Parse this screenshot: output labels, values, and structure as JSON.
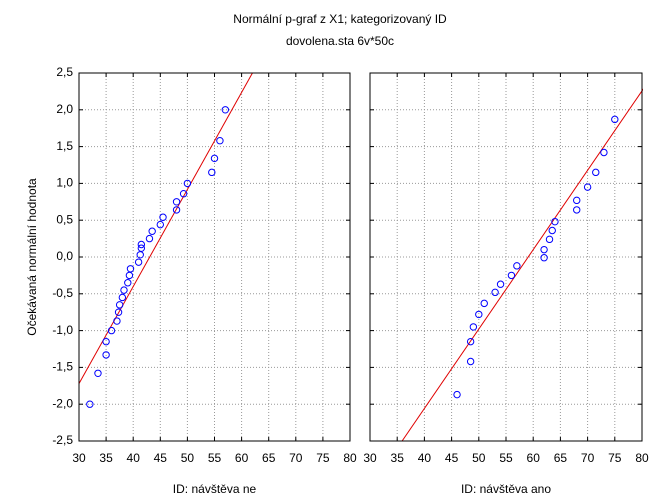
{
  "chart_data": [
    {
      "type": "scatter",
      "title": "Normální p-graf z X1; kategorizovaný ID",
      "subtitle": "dovolena.sta 6v*50c",
      "ylabel": "Očekávaná normální hodnota",
      "xlabel": "ID: návštěva ne",
      "xlim": [
        30,
        80
      ],
      "xticks": [
        30,
        35,
        40,
        45,
        50,
        55,
        60,
        65,
        70,
        75,
        80
      ],
      "ylim": [
        -2.5,
        2.5
      ],
      "yticks": [
        {
          "value": -2.5,
          "label": "-2,5"
        },
        {
          "value": -2,
          "label": "-2,0"
        },
        {
          "value": -1.5,
          "label": "-1,5"
        },
        {
          "value": -1,
          "label": "-1,0"
        },
        {
          "value": -0.5,
          "label": "-0,5"
        },
        {
          "value": 0,
          "label": "0,0"
        },
        {
          "value": 0.5,
          "label": "0,5"
        },
        {
          "value": 1,
          "label": "1,0"
        },
        {
          "value": 1.5,
          "label": "1,5"
        },
        {
          "value": 2,
          "label": "2,0"
        },
        {
          "value": 2.5,
          "label": "2,5"
        }
      ],
      "grid": true,
      "points": {
        "color": "#0000ff",
        "x": [
          32,
          33.5,
          35,
          35,
          36,
          37,
          37.3,
          37.5,
          38,
          38.3,
          39,
          39.3,
          39.5,
          41,
          41.3,
          41.5,
          41.5,
          43,
          43.5,
          45,
          45.5,
          48,
          48,
          49.3,
          50,
          54.5,
          55,
          56,
          57
        ],
        "values": [
          -2.0,
          -1.58,
          -1.33,
          -1.15,
          -1.0,
          -0.87,
          -0.75,
          -0.65,
          -0.55,
          -0.45,
          -0.35,
          -0.25,
          -0.16,
          -0.07,
          0.03,
          0.12,
          0.17,
          0.25,
          0.35,
          0.44,
          0.54,
          0.64,
          0.75,
          0.86,
          1.0,
          1.15,
          1.34,
          1.58,
          2.0
        ]
      },
      "fit": {
        "color": "#e00000",
        "x": [
          30,
          62
        ],
        "values": [
          -1.72,
          2.5
        ]
      }
    },
    {
      "type": "scatter",
      "xlabel": "ID: návštěva ano",
      "xlim": [
        30,
        80
      ],
      "xticks": [
        30,
        35,
        40,
        45,
        50,
        55,
        60,
        65,
        70,
        75,
        80
      ],
      "ylim": [
        -2.5,
        2.5
      ],
      "grid": true,
      "points": {
        "color": "#0000ff",
        "x": [
          46,
          48.5,
          48.5,
          49,
          50,
          51,
          53,
          54,
          56,
          57,
          62,
          62,
          63,
          63.5,
          64,
          68,
          68,
          70,
          71.5,
          73,
          75
        ],
        "values": [
          -1.87,
          -1.42,
          -1.15,
          -0.95,
          -0.78,
          -0.63,
          -0.48,
          -0.37,
          -0.25,
          -0.12,
          -0.01,
          0.1,
          0.24,
          0.36,
          0.48,
          0.64,
          0.77,
          0.95,
          1.15,
          1.42,
          1.87
        ]
      },
      "fit": {
        "color": "#e00000",
        "x": [
          35.9,
          80.4
        ],
        "values": [
          -2.5,
          2.3
        ]
      }
    }
  ]
}
